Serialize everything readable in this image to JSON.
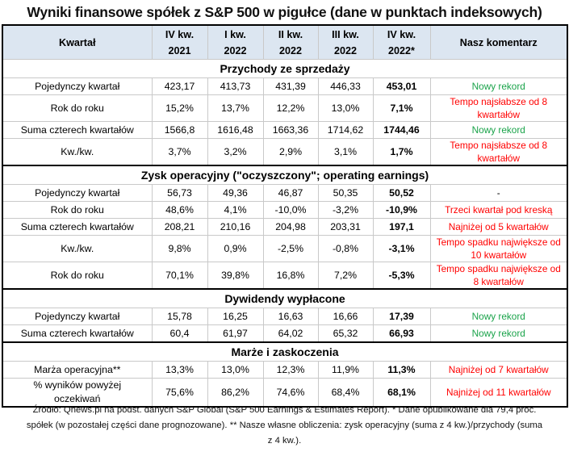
{
  "title": "Wyniki finansowe spółek z S&P 500 w pigułce (dane w punktach indeksowych)",
  "colors": {
    "header_bg": "#dce6f1",
    "positive_comment": "#1aa34a",
    "negative_comment": "#ff0000"
  },
  "header": {
    "label": "Kwartał",
    "columns": [
      {
        "line1": "IV kw.",
        "line2": "2021"
      },
      {
        "line1": "I kw.",
        "line2": "2022"
      },
      {
        "line1": "II kw.",
        "line2": "2022"
      },
      {
        "line1": "III kw.",
        "line2": "2022"
      },
      {
        "line1": "IV kw.",
        "line2": "2022*"
      }
    ],
    "comment": "Nasz komentarz"
  },
  "sections": [
    {
      "title": "Przychody ze sprzedaży",
      "rows": [
        {
          "label": "Pojedynczy kwartał",
          "values": [
            "423,17",
            "413,73",
            "431,39",
            "446,33",
            "453,01"
          ],
          "comment": "Nowy rekord",
          "tone": "green"
        },
        {
          "label": "Rok do roku",
          "values": [
            "15,2%",
            "13,7%",
            "12,2%",
            "13,0%",
            "7,1%"
          ],
          "comment": "Tempo najsłabsze od 8 kwartałów",
          "tone": "red"
        },
        {
          "label": "Suma czterech kwartałów",
          "values": [
            "1566,8",
            "1616,48",
            "1663,36",
            "1714,62",
            "1744,46"
          ],
          "comment": "Nowy rekord",
          "tone": "green"
        },
        {
          "label": "Kw./kw.",
          "values": [
            "3,7%",
            "3,2%",
            "2,9%",
            "3,1%",
            "1,7%"
          ],
          "comment": "Tempo najsłabsze od 8 kwartałów",
          "tone": "red"
        }
      ]
    },
    {
      "title": "Zysk operacyjny (\"oczyszczony\"; operating earnings)",
      "rows": [
        {
          "label": "Pojedynczy kwartał",
          "values": [
            "56,73",
            "49,36",
            "46,87",
            "50,35",
            "50,52"
          ],
          "comment": "-",
          "tone": "black"
        },
        {
          "label": "Rok do roku",
          "values": [
            "48,6%",
            "4,1%",
            "-10,0%",
            "-3,2%",
            "-10,9%"
          ],
          "comment": "Trzeci kwartał pod kreską",
          "tone": "red"
        },
        {
          "label": "Suma czterech kwartałów",
          "values": [
            "208,21",
            "210,16",
            "204,98",
            "203,31",
            "197,1"
          ],
          "comment": "Najniżej od 5 kwartałów",
          "tone": "red"
        },
        {
          "label": "Kw./kw.",
          "values": [
            "9,8%",
            "0,9%",
            "-2,5%",
            "-0,8%",
            "-3,1%"
          ],
          "comment": "Tempo spadku największe od 10 kwartałów",
          "tone": "red"
        },
        {
          "label": "Rok do roku",
          "values": [
            "70,1%",
            "39,8%",
            "16,8%",
            "7,2%",
            "-5,3%"
          ],
          "comment": "Tempo spadku największe od 8 kwartałów",
          "tone": "red"
        }
      ]
    },
    {
      "title": "Dywidendy wypłacone",
      "rows": [
        {
          "label": "Pojedynczy kwartał",
          "values": [
            "15,78",
            "16,25",
            "16,63",
            "16,66",
            "17,39"
          ],
          "comment": "Nowy rekord",
          "tone": "green"
        },
        {
          "label": "Suma czterech kwartałów",
          "values": [
            "60,4",
            "61,97",
            "64,02",
            "65,32",
            "66,93"
          ],
          "comment": "Nowy rekord",
          "tone": "green"
        }
      ]
    },
    {
      "title": "Marże i zaskoczenia",
      "rows": [
        {
          "label": "Marża operacyjna**",
          "values": [
            "13,3%",
            "13,0%",
            "12,3%",
            "11,9%",
            "11,3%"
          ],
          "comment": "Najniżej od 7 kwartałów",
          "tone": "red"
        },
        {
          "label": "% wyników powyżej oczekiwań",
          "values": [
            "75,6%",
            "86,2%",
            "74,6%",
            "68,4%",
            "68,1%"
          ],
          "comment": "Najniżej od 11 kwartałów",
          "tone": "red"
        }
      ]
    }
  ],
  "footnote": {
    "line1": "Źródło: Qnews.pl na podst. danych S&P Global (S&P 500 Earnings & Estimates Report). * Dane opublikowane dla 79,4 proc.",
    "line2": "spółek (w pozostałej części dane prognozowane). ** Nasze własne obliczenia: zysk operacyjny (suma z 4 kw.)/przychody (suma",
    "line3": "z 4 kw.)."
  }
}
